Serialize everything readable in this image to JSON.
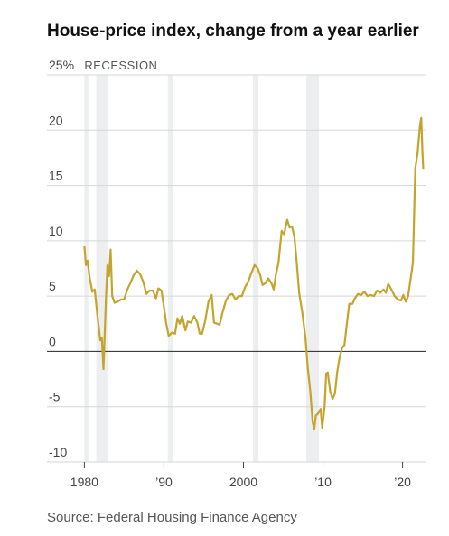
{
  "chart_data": {
    "type": "line",
    "title": "House-price index, change from a year earlier",
    "annotation": "RECESSION",
    "source": "Source: Federal Housing Finance Agency",
    "recessions": [
      [
        1980.0,
        1980.5
      ],
      [
        1981.5,
        1982.9
      ],
      [
        1990.5,
        1991.2
      ],
      [
        2001.2,
        2001.9
      ],
      [
        2007.9,
        2009.5
      ]
    ],
    "xlim": [
      1975.3,
      2023
    ],
    "ylim": [
      -10,
      25
    ],
    "xticks": [
      1980,
      {
        "value": 1990,
        "label": "’90"
      },
      2000,
      {
        "value": 2010,
        "label": "’10"
      },
      {
        "value": 2020,
        "label": "’20"
      }
    ],
    "yticks": [
      {
        "value": 25,
        "label": "25%"
      },
      20,
      15,
      10,
      5,
      0,
      -5,
      -10
    ],
    "grid": true,
    "series": [
      {
        "name": "House-price index",
        "color": "#c4a42c",
        "x": [
          1980.0,
          1980.2,
          1980.4,
          1980.7,
          1981.0,
          1981.3,
          1981.6,
          1982.0,
          1982.2,
          1982.4,
          1982.7,
          1982.9,
          1983.1,
          1983.3,
          1983.5,
          1983.8,
          1984.2,
          1984.6,
          1985.0,
          1985.4,
          1985.8,
          1986.2,
          1986.6,
          1987.0,
          1987.4,
          1987.8,
          1988.2,
          1988.6,
          1989.0,
          1989.3,
          1989.7,
          1990.0,
          1990.3,
          1990.6,
          1991.0,
          1991.4,
          1991.7,
          1992.0,
          1992.3,
          1992.7,
          1993.0,
          1993.4,
          1993.8,
          1994.2,
          1994.5,
          1994.8,
          1995.2,
          1995.6,
          1996.0,
          1996.3,
          1996.7,
          1997.0,
          1997.4,
          1997.8,
          1998.2,
          1998.6,
          1999.0,
          1999.4,
          1999.8,
          2000.2,
          2000.6,
          2001.0,
          2001.4,
          2001.8,
          2002.1,
          2002.4,
          2002.8,
          2003.1,
          2003.5,
          2003.8,
          2004.1,
          2004.4,
          2004.8,
          2005.1,
          2005.5,
          2005.8,
          2006.1,
          2006.4,
          2006.7,
          2007.0,
          2007.4,
          2007.8,
          2008.1,
          2008.4,
          2008.7,
          2008.9,
          2009.1,
          2009.4,
          2009.7,
          2009.9,
          2010.2,
          2010.4,
          2010.6,
          2010.9,
          2011.2,
          2011.5,
          2011.8,
          2012.1,
          2012.4,
          2012.7,
          2013.0,
          2013.3,
          2013.7,
          2014.0,
          2014.4,
          2014.8,
          2015.2,
          2015.6,
          2016.0,
          2016.4,
          2016.8,
          2017.2,
          2017.6,
          2017.9,
          2018.2,
          2018.6,
          2019.0,
          2019.4,
          2019.8,
          2020.1,
          2020.4,
          2020.7,
          2021.0,
          2021.3,
          2021.6,
          2021.9,
          2022.2,
          2022.35,
          2022.5,
          2022.6
        ],
        "values": [
          9.5,
          7.8,
          8.2,
          6.5,
          5.4,
          5.6,
          3.5,
          1.0,
          1.2,
          -1.6,
          4.5,
          7.8,
          6.8,
          9.2,
          5.0,
          4.4,
          4.5,
          4.7,
          4.7,
          5.6,
          6.2,
          6.9,
          7.3,
          7.0,
          6.3,
          5.2,
          5.5,
          5.5,
          4.8,
          5.7,
          5.5,
          4.0,
          2.5,
          1.4,
          1.7,
          1.6,
          3.0,
          2.5,
          3.2,
          1.9,
          2.7,
          2.6,
          3.2,
          2.6,
          1.6,
          1.6,
          2.8,
          4.5,
          5.1,
          2.6,
          2.5,
          2.4,
          3.6,
          4.6,
          5.1,
          5.2,
          4.7,
          5.0,
          5.0,
          5.8,
          6.3,
          7.1,
          7.8,
          7.5,
          6.9,
          6.0,
          6.2,
          6.6,
          6.2,
          5.6,
          7.0,
          8.0,
          10.9,
          10.6,
          11.9,
          11.2,
          11.3,
          10.4,
          8.0,
          5.3,
          3.5,
          1.2,
          -1.6,
          -3.6,
          -6.4,
          -7.0,
          -5.8,
          -5.6,
          -5.2,
          -6.9,
          -5.0,
          -2.0,
          -1.9,
          -3.6,
          -4.3,
          -3.8,
          -1.8,
          -0.5,
          0.3,
          0.6,
          2.5,
          4.3,
          4.3,
          4.8,
          5.2,
          5.1,
          5.4,
          5.0,
          5.1,
          5.0,
          5.5,
          5.3,
          5.6,
          5.3,
          6.1,
          5.6,
          5.0,
          4.7,
          4.6,
          5.1,
          4.5,
          5.0,
          6.5,
          8.0,
          16.5,
          18.0,
          20.5,
          21.1,
          18.0,
          16.5
        ]
      }
    ]
  }
}
